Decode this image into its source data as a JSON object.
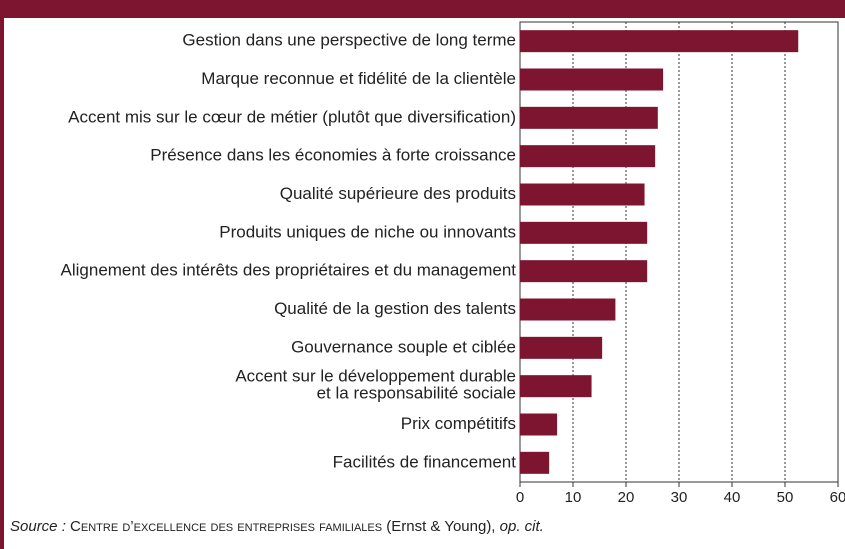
{
  "chart_data": {
    "type": "barh",
    "categories": [
      "Gestion dans une perspective de long terme",
      "Marque reconnue et fidélité de la clientèle",
      "Accent mis sur le cœur de métier (plutôt que diversification)",
      "Présence dans les économies à forte croissance",
      "Qualité supérieure des produits",
      "Produits uniques de niche ou innovants",
      "Alignement des intérêts des propriétaires et du management",
      "Qualité de la gestion des talents",
      "Gouvernance souple et ciblée",
      "Accent sur le développement durable\net la responsabilité sociale",
      "Prix compétitifs",
      "Facilités de financement"
    ],
    "values": [
      52.5,
      27,
      26,
      25.5,
      23.5,
      24,
      24,
      18,
      15.5,
      13.5,
      7,
      5.5
    ],
    "color": "#7d1530",
    "xlim": [
      0,
      60
    ],
    "xticks": [
      0,
      10,
      20,
      30,
      40,
      50,
      60
    ],
    "grid": true,
    "source": {
      "label": "Source :",
      "body": "Centre d’excellence des entreprises familiales",
      "rest": " (Ernst & Young), ",
      "end": "op. cit."
    }
  }
}
